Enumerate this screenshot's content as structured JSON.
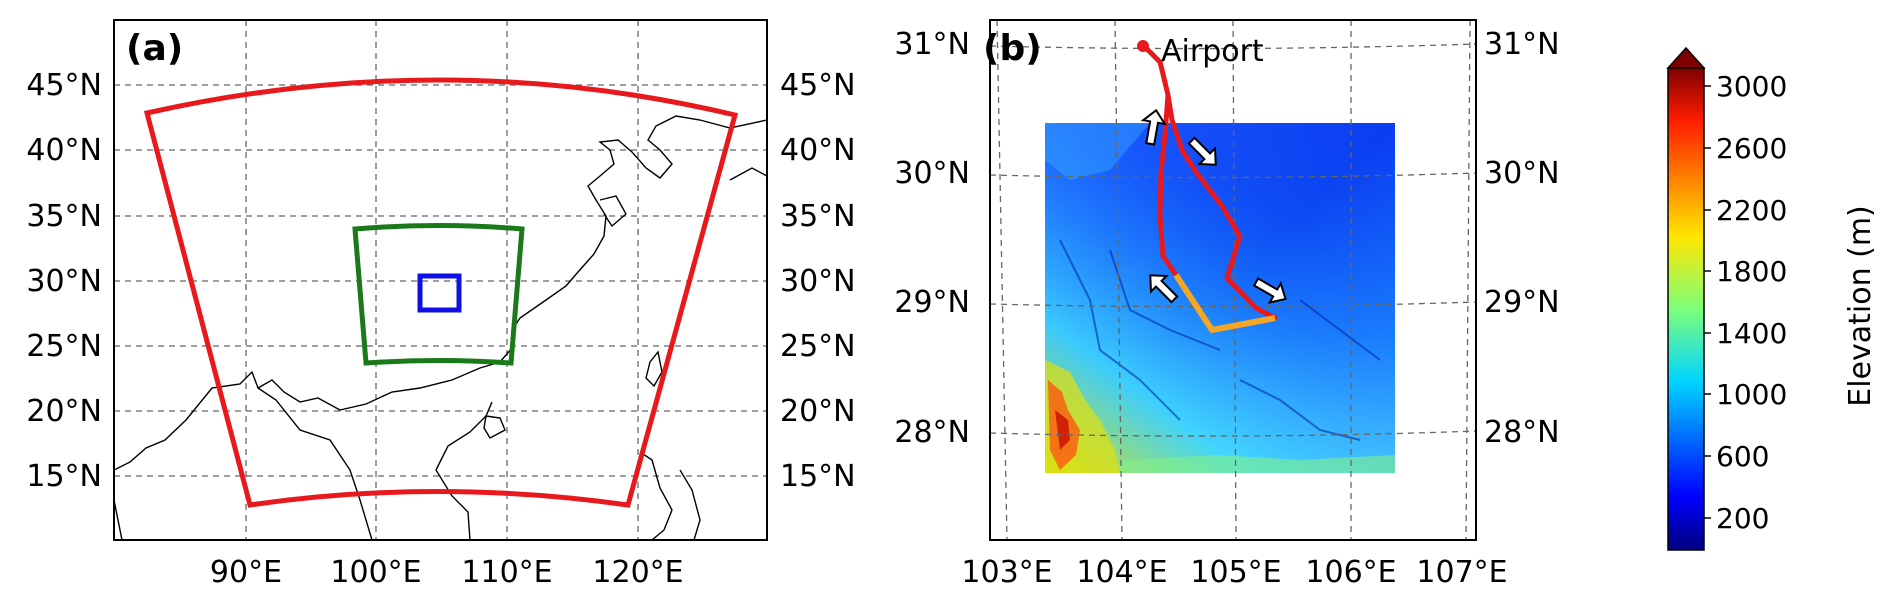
{
  "panel_a": {
    "label": "(a)",
    "lat_ticks": [
      "45°N",
      "40°N",
      "35°N",
      "30°N",
      "25°N",
      "20°N",
      "15°N"
    ],
    "lon_ticks": [
      "90°E",
      "100°E",
      "110°E",
      "120°E"
    ],
    "domains": [
      {
        "name": "outer",
        "color": "#e8191d"
      },
      {
        "name": "middle",
        "color": "#1a7a1a"
      },
      {
        "name": "inner",
        "color": "#1010e6"
      }
    ]
  },
  "panel_b": {
    "label": "(b)",
    "lat_ticks": [
      "31°N",
      "30°N",
      "29°N",
      "28°N"
    ],
    "lon_ticks": [
      "103°E",
      "104°E",
      "105°E",
      "106°E",
      "107°E"
    ],
    "airport_label": "Airport",
    "track_colors": {
      "outbound": "#e8191d",
      "segment": "#f5a623"
    }
  },
  "colorbar": {
    "label": "Elevation (m)",
    "ticks": [
      "3000",
      "2600",
      "2200",
      "1800",
      "1400",
      "1000",
      "600",
      "200"
    ],
    "min": 0,
    "max": 3000
  }
}
